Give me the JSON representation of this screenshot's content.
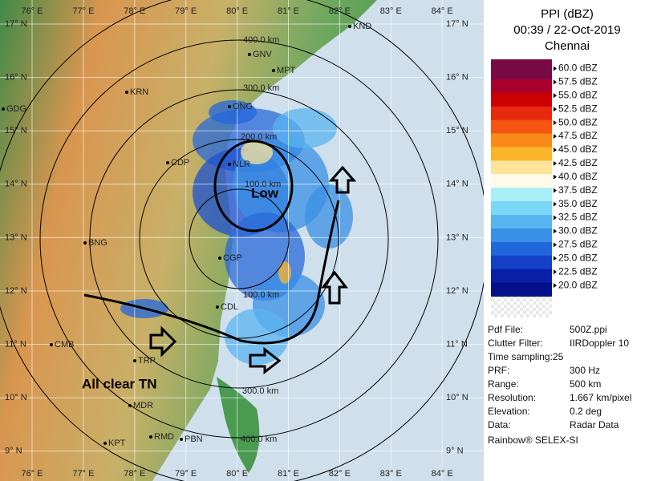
{
  "header": {
    "title": "PPI (dBZ)",
    "time": "00:39 / 22-Oct-2019",
    "station": "Chennai"
  },
  "legend": [
    {
      "label": "60.0 dBZ",
      "color": "#7a0a45"
    },
    {
      "label": "57.5 dBZ",
      "color": "#a8002a"
    },
    {
      "label": "55.0 dBZ",
      "color": "#cc0000"
    },
    {
      "label": "52.5 dBZ",
      "color": "#e62a10"
    },
    {
      "label": "50.0 dBZ",
      "color": "#f55510"
    },
    {
      "label": "47.5 dBZ",
      "color": "#f98a1a"
    },
    {
      "label": "45.0 dBZ",
      "color": "#fbb52a"
    },
    {
      "label": "42.5 dBZ",
      "color": "#fde49a"
    },
    {
      "label": "40.0 dBZ",
      "color": "#fffbe8"
    },
    {
      "label": "37.5 dBZ",
      "color": "#a8eef6"
    },
    {
      "label": "35.0 dBZ",
      "color": "#7cd6f5"
    },
    {
      "label": "32.5 dBZ",
      "color": "#5ab4f0"
    },
    {
      "label": "30.0 dBZ",
      "color": "#3a90e6"
    },
    {
      "label": "27.5 dBZ",
      "color": "#2266dc"
    },
    {
      "label": "25.0 dBZ",
      "color": "#1440c8"
    },
    {
      "label": "22.5 dBZ",
      "color": "#0a1fa8"
    },
    {
      "label": "20.0 dBZ",
      "color": "#04108a"
    }
  ],
  "info": [
    [
      "Pdf File:",
      "500Z.ppi"
    ],
    [
      "Clutter Filter:",
      "IIRDoppler 10"
    ],
    [
      "Time sampling:25",
      ""
    ],
    [
      "PRF:",
      "300 Hz"
    ],
    [
      "Range:",
      "500 km"
    ],
    [
      "Resolution:",
      "1.667 km/pixel"
    ],
    [
      "Elevation:",
      "0.2 deg"
    ],
    [
      "Data:",
      "Radar Data"
    ]
  ],
  "footer": "Rainbow® SELEX-SI",
  "map": {
    "longitudes": [
      "76° E",
      "77° E",
      "78° E",
      "79° E",
      "80° E",
      "81° E",
      "82° E",
      "83° E",
      "84° E"
    ],
    "latitudes": [
      "17° N",
      "16° N",
      "15° N",
      "14° N",
      "13° N",
      "12° N",
      "11° N",
      "10° N",
      "9° N"
    ],
    "range_labels": [
      "400.0 km",
      "300.0 km",
      "200.0 km",
      "100.0 km",
      "100.0 km",
      "300.0 km",
      "400.0 km"
    ],
    "cities": [
      "KND",
      "GNV",
      "MPT",
      "KRN",
      "GDG",
      "ONG",
      "CDP",
      "NLR",
      "BNG",
      "CGP",
      "CDL",
      "CMB",
      "TRP",
      "MDR",
      "KPT",
      "RMD",
      "PBN"
    ],
    "annotations": [
      "Low",
      "All clear TN"
    ]
  }
}
